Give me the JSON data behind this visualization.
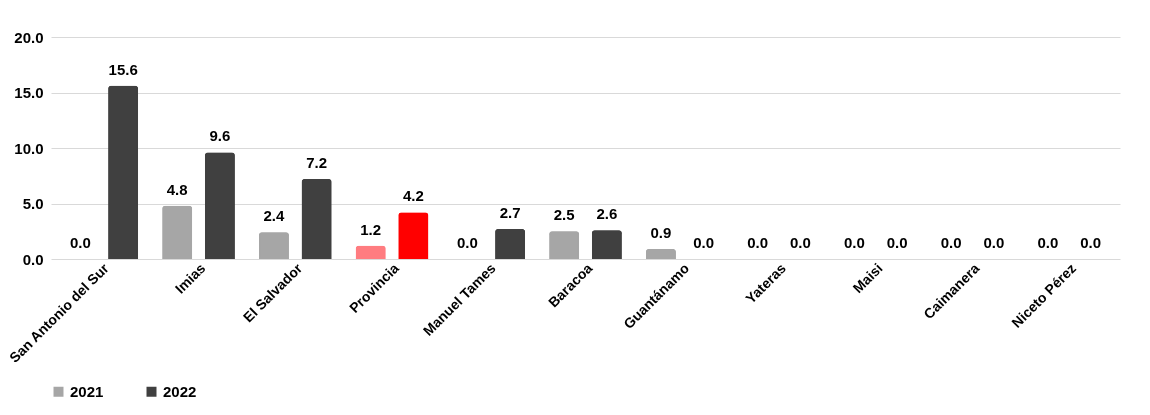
{
  "chart_data": {
    "type": "bar",
    "categories": [
      "San Antonio del Sur",
      "Imias",
      "El Salvador",
      "Provincia",
      "Manuel Tames",
      "Baracoa",
      "Guantánamo",
      "Yateras",
      "Maisi",
      "Caimanera",
      "Niceto Pérez"
    ],
    "series": [
      {
        "name": "2021",
        "color": "#a6a6a6",
        "colors": [
          "#a6a6a6",
          "#a6a6a6",
          "#a6a6a6",
          "#ff7c80",
          "#a6a6a6",
          "#a6a6a6",
          "#a6a6a6",
          "#a6a6a6",
          "#a6a6a6",
          "#a6a6a6",
          "#a6a6a6"
        ],
        "values": [
          0.0,
          4.8,
          2.4,
          1.2,
          0.0,
          2.5,
          0.9,
          0.0,
          0.0,
          0.0,
          0.0
        ],
        "value_labels": [
          "0.0",
          "4.8",
          "2.4",
          "1.2",
          "0.0",
          "2.5",
          "0.9",
          "0.0",
          "0.0",
          "0.0",
          "0.0"
        ]
      },
      {
        "name": "2022",
        "color": "#404040",
        "colors": [
          "#404040",
          "#404040",
          "#404040",
          "#ff0000",
          "#404040",
          "#404040",
          "#404040",
          "#404040",
          "#404040",
          "#404040",
          "#404040"
        ],
        "values": [
          15.6,
          9.6,
          7.2,
          4.2,
          2.7,
          2.6,
          0.0,
          0.0,
          0.0,
          0.0,
          0.0
        ],
        "value_labels": [
          "15.6",
          "9.6",
          "7.2",
          "4.2",
          "2.7",
          "2.6",
          "0.0",
          "0.0",
          "0.0",
          "0.0",
          "0.0"
        ]
      }
    ],
    "ylim": [
      0,
      20
    ],
    "yticks": [
      {
        "value": 0,
        "label": "0.0"
      },
      {
        "value": 5,
        "label": "5.0"
      },
      {
        "value": 10,
        "label": "10.0"
      },
      {
        "value": 15,
        "label": "15.0"
      },
      {
        "value": 20,
        "label": "20.0"
      }
    ],
    "grid": "y",
    "legend": "bottom"
  }
}
